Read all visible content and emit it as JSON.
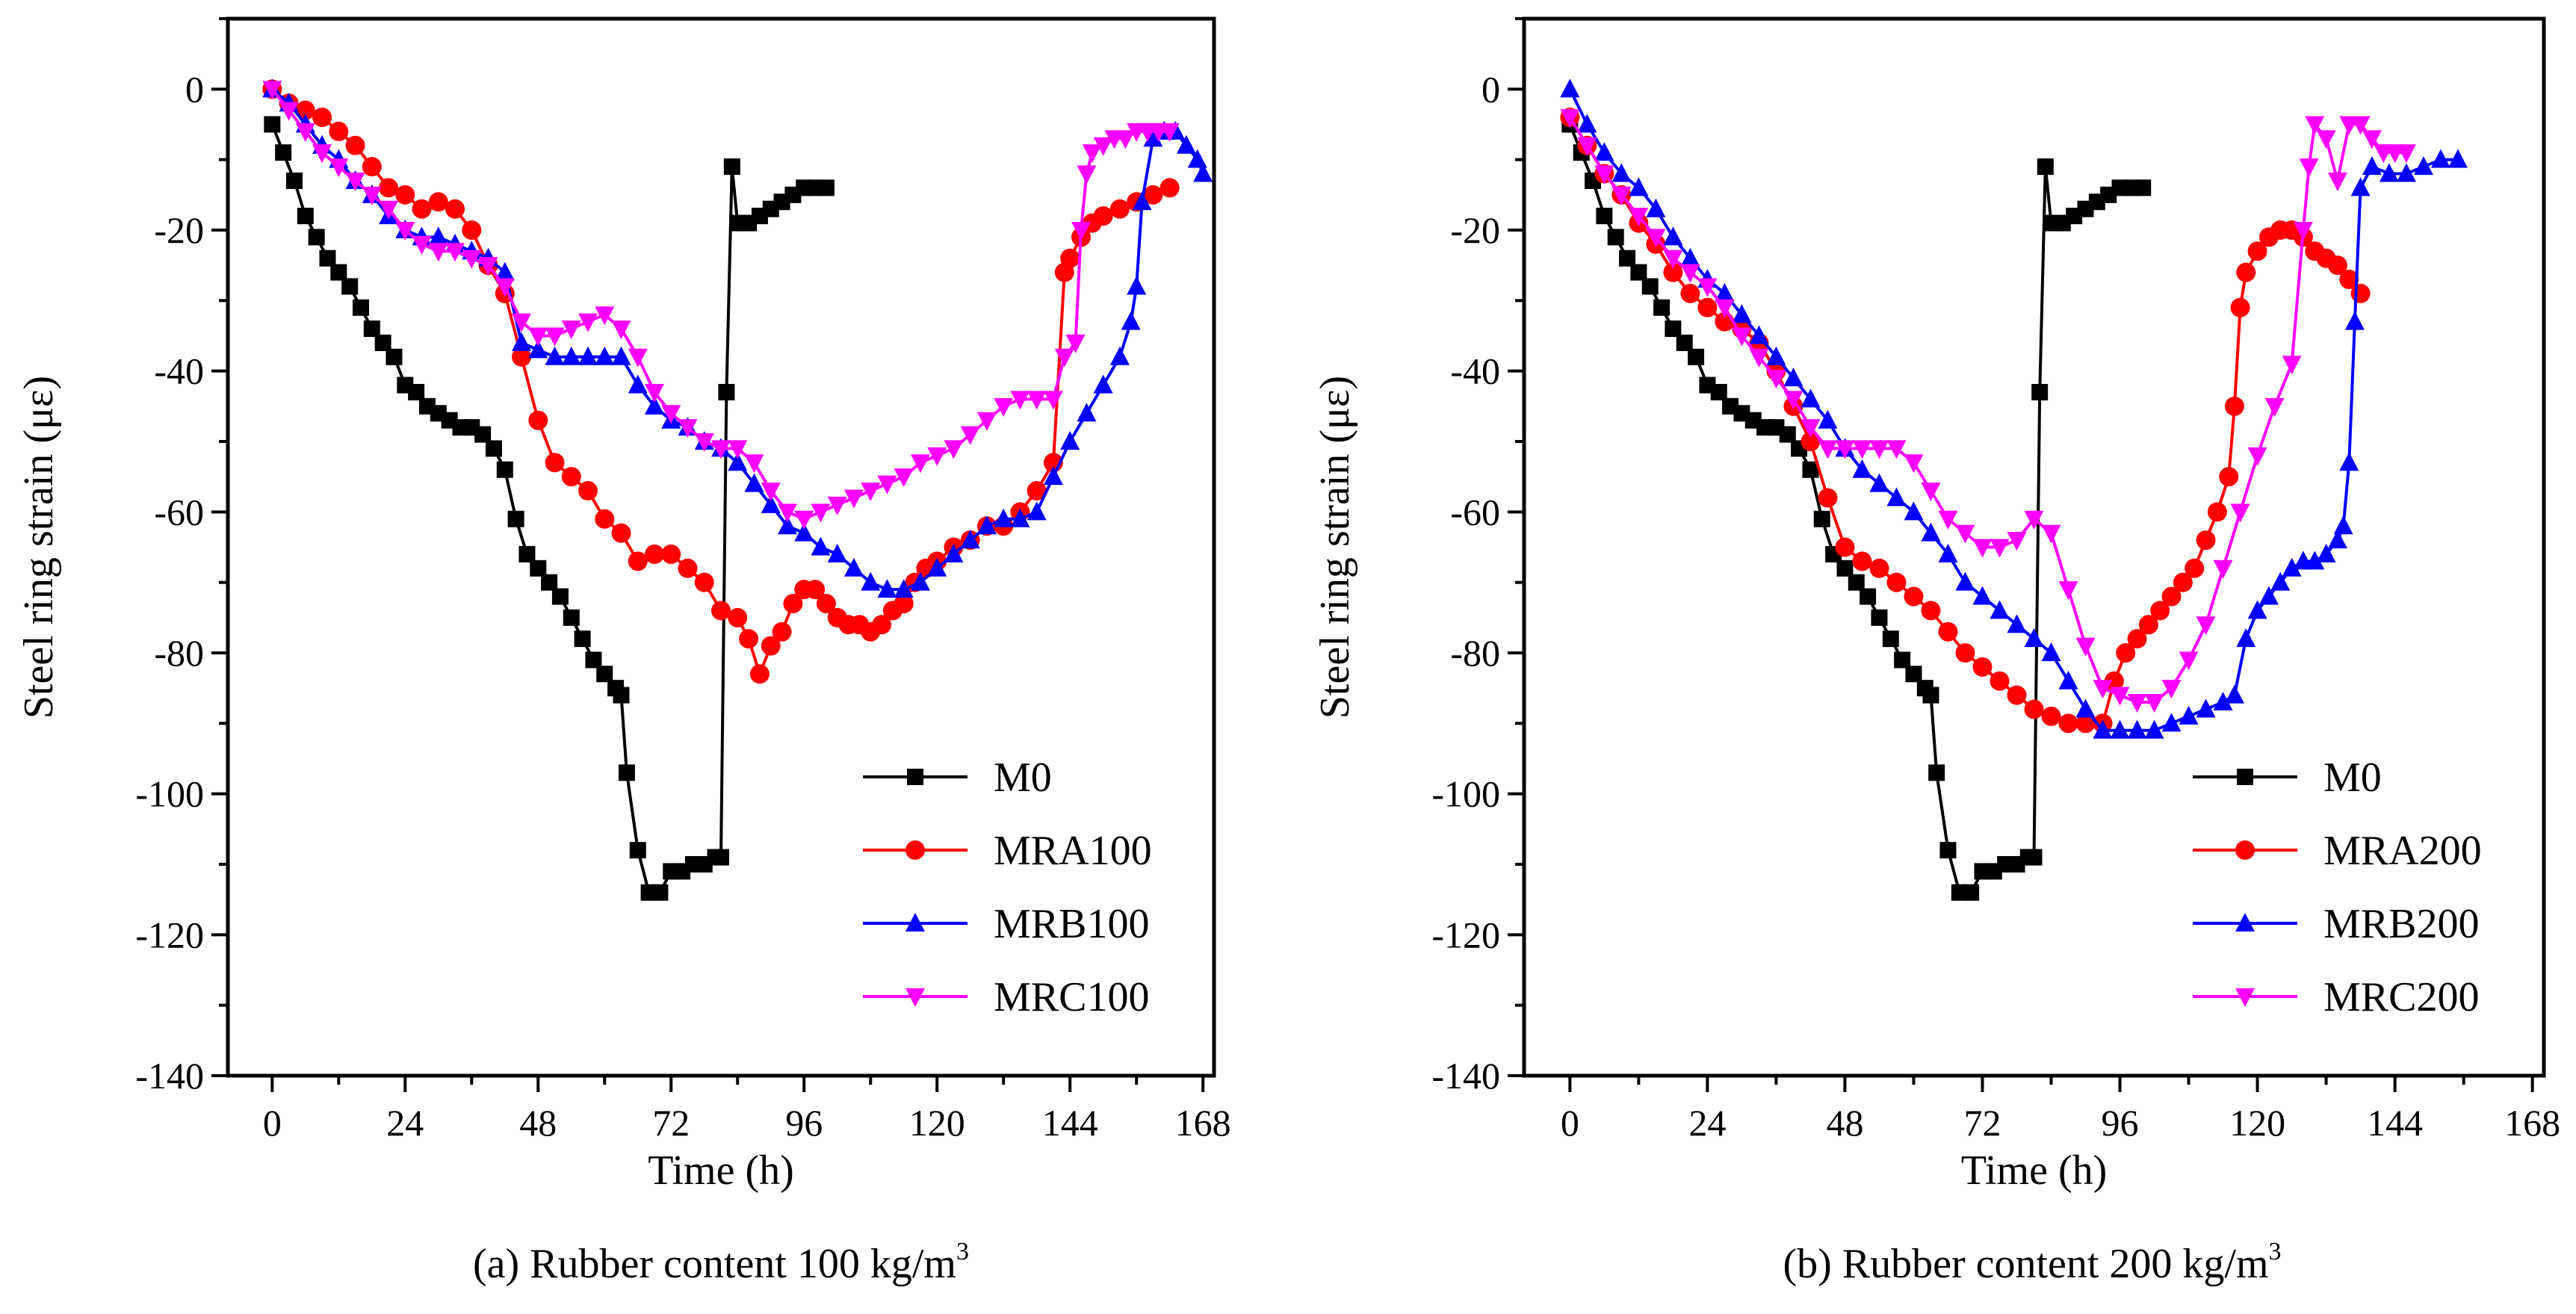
{
  "chart_data": [
    {
      "type": "line",
      "panel": "a",
      "caption_main": "(a) Rubber content 100 kg/m",
      "caption_sup": "3",
      "xlabel": "Time (h)",
      "ylabel": "Steel ring strain (με)",
      "xlim": [
        -8,
        170
      ],
      "ylim": [
        -140,
        10
      ],
      "xticks": [
        0,
        24,
        48,
        72,
        96,
        120,
        144,
        168
      ],
      "yticks": [
        0,
        -20,
        -40,
        -60,
        -80,
        -100,
        -120,
        -140
      ],
      "legend_position": "bottom-right",
      "series": [
        {
          "name": "M0",
          "color": "#000000",
          "marker": "square",
          "x": [
            0,
            2,
            4,
            6,
            8,
            10,
            12,
            14,
            16,
            18,
            20,
            22,
            24,
            26,
            28,
            30,
            32,
            34,
            36,
            38,
            40,
            42,
            44,
            46,
            48,
            50,
            52,
            54,
            56,
            58,
            60,
            62,
            63,
            64,
            66,
            68,
            70,
            72,
            74,
            76,
            78,
            80,
            81,
            82,
            83,
            84,
            86,
            88,
            90,
            92,
            94,
            96,
            98,
            100
          ],
          "y": [
            -5,
            -9,
            -13,
            -18,
            -21,
            -24,
            -26,
            -28,
            -31,
            -34,
            -36,
            -38,
            -42,
            -43,
            -45,
            -46,
            -47,
            -48,
            -48,
            -49,
            -51,
            -54,
            -61,
            -66,
            -68,
            -70,
            -72,
            -75,
            -78,
            -81,
            -83,
            -85,
            -86,
            -97,
            -108,
            -114,
            -114,
            -111,
            -111,
            -110,
            -110,
            -109,
            -109,
            -43,
            -11,
            -19,
            -19,
            -18,
            -17,
            -16,
            -15,
            -14,
            -14,
            -14
          ]
        },
        {
          "name": "MRA100",
          "color": "#ff0000",
          "marker": "circle",
          "x": [
            0,
            3,
            6,
            9,
            12,
            15,
            18,
            21,
            24,
            27,
            30,
            33,
            36,
            39,
            42,
            45,
            48,
            51,
            54,
            57,
            60,
            63,
            66,
            69,
            72,
            75,
            78,
            81,
            84,
            86,
            88,
            90,
            92,
            94,
            96,
            98,
            100,
            102,
            104,
            106,
            108,
            110,
            112,
            114,
            116,
            118,
            120,
            123,
            126,
            129,
            132,
            135,
            138,
            141,
            143,
            144,
            146,
            148,
            150,
            153,
            156,
            159,
            162
          ],
          "y": [
            0,
            -2,
            -3,
            -4,
            -6,
            -8,
            -11,
            -14,
            -15,
            -17,
            -16,
            -17,
            -20,
            -25,
            -29,
            -38,
            -47,
            -53,
            -55,
            -57,
            -61,
            -63,
            -67,
            -66,
            -66,
            -68,
            -70,
            -74,
            -75,
            -78,
            -83,
            -79,
            -77,
            -73,
            -71,
            -71,
            -73,
            -75,
            -76,
            -76,
            -77,
            -76,
            -74,
            -73,
            -70,
            -68,
            -67,
            -65,
            -64,
            -62,
            -62,
            -60,
            -57,
            -53,
            -26,
            -24,
            -21,
            -19,
            -18,
            -17,
            -16,
            -15,
            -14
          ]
        },
        {
          "name": "MRB100",
          "color": "#0000ff",
          "marker": "triangle-up",
          "x": [
            0,
            3,
            6,
            9,
            12,
            15,
            18,
            21,
            24,
            27,
            30,
            33,
            36,
            39,
            42,
            45,
            48,
            51,
            54,
            57,
            60,
            63,
            66,
            69,
            72,
            75,
            78,
            81,
            84,
            87,
            90,
            93,
            96,
            99,
            102,
            105,
            108,
            111,
            114,
            117,
            120,
            123,
            126,
            129,
            132,
            135,
            138,
            141,
            144,
            147,
            150,
            153,
            155,
            156,
            157,
            159,
            161,
            163,
            165,
            167,
            168
          ],
          "y": [
            0,
            -2,
            -5,
            -8,
            -10,
            -13,
            -15,
            -18,
            -20,
            -21,
            -21,
            -22,
            -23,
            -24,
            -26,
            -36,
            -37,
            -38,
            -38,
            -38,
            -38,
            -38,
            -42,
            -45,
            -47,
            -48,
            -50,
            -51,
            -53,
            -56,
            -59,
            -62,
            -63,
            -65,
            -66,
            -68,
            -70,
            -71,
            -71,
            -70,
            -68,
            -66,
            -64,
            -62,
            -61,
            -61,
            -60,
            -55,
            -50,
            -46,
            -42,
            -38,
            -33,
            -28,
            -16,
            -7,
            -6,
            -6,
            -8,
            -10,
            -12
          ]
        },
        {
          "name": "MRC100",
          "color": "#ff00ff",
          "marker": "triangle-down",
          "x": [
            0,
            3,
            6,
            9,
            12,
            15,
            18,
            21,
            24,
            27,
            30,
            33,
            36,
            39,
            42,
            45,
            48,
            51,
            54,
            57,
            60,
            63,
            66,
            69,
            72,
            75,
            78,
            81,
            84,
            87,
            90,
            93,
            96,
            99,
            102,
            105,
            108,
            111,
            114,
            117,
            120,
            123,
            126,
            129,
            132,
            135,
            138,
            141,
            143,
            145,
            146,
            147,
            148,
            150,
            152,
            154,
            156,
            158,
            160,
            162
          ],
          "y": [
            0,
            -3,
            -6,
            -9,
            -11,
            -13,
            -15,
            -17,
            -20,
            -22,
            -23,
            -23,
            -24,
            -25,
            -28,
            -33,
            -35,
            -35,
            -34,
            -33,
            -32,
            -34,
            -38,
            -43,
            -46,
            -48,
            -50,
            -51,
            -51,
            -53,
            -57,
            -60,
            -61,
            -60,
            -59,
            -58,
            -57,
            -56,
            -55,
            -53,
            -52,
            -51,
            -49,
            -47,
            -45,
            -44,
            -44,
            -44,
            -38,
            -36,
            -20,
            -12,
            -9,
            -8,
            -7,
            -7,
            -6,
            -6,
            -6,
            -6
          ]
        }
      ]
    },
    {
      "type": "line",
      "panel": "b",
      "caption_main": "(b) Rubber content 200 kg/m",
      "caption_sup": "3",
      "xlabel": "Time (h)",
      "ylabel": "Steel ring strain (με)",
      "xlim": [
        -8,
        170
      ],
      "ylim": [
        -140,
        10
      ],
      "xticks": [
        0,
        24,
        48,
        72,
        96,
        120,
        144,
        168
      ],
      "yticks": [
        0,
        -20,
        -40,
        -60,
        -80,
        -100,
        -120,
        -140
      ],
      "legend_position": "bottom-right",
      "series": [
        {
          "name": "M0",
          "color": "#000000",
          "marker": "square",
          "x": [
            0,
            2,
            4,
            6,
            8,
            10,
            12,
            14,
            16,
            18,
            20,
            22,
            24,
            26,
            28,
            30,
            32,
            34,
            36,
            38,
            40,
            42,
            44,
            46,
            48,
            50,
            52,
            54,
            56,
            58,
            60,
            62,
            63,
            64,
            66,
            68,
            70,
            72,
            74,
            76,
            78,
            80,
            81,
            82,
            83,
            84,
            86,
            88,
            90,
            92,
            94,
            96,
            98,
            100
          ],
          "y": [
            -5,
            -9,
            -13,
            -18,
            -21,
            -24,
            -26,
            -28,
            -31,
            -34,
            -36,
            -38,
            -42,
            -43,
            -45,
            -46,
            -47,
            -48,
            -48,
            -49,
            -51,
            -54,
            -61,
            -66,
            -68,
            -70,
            -72,
            -75,
            -78,
            -81,
            -83,
            -85,
            -86,
            -97,
            -108,
            -114,
            -114,
            -111,
            -111,
            -110,
            -110,
            -109,
            -109,
            -43,
            -11,
            -19,
            -19,
            -18,
            -17,
            -16,
            -15,
            -14,
            -14,
            -14
          ]
        },
        {
          "name": "MRA200",
          "color": "#ff0000",
          "marker": "circle",
          "x": [
            0,
            3,
            6,
            9,
            12,
            15,
            18,
            21,
            24,
            27,
            30,
            33,
            36,
            39,
            42,
            45,
            48,
            51,
            54,
            57,
            60,
            63,
            66,
            69,
            72,
            75,
            78,
            81,
            84,
            87,
            90,
            93,
            95,
            97,
            99,
            101,
            103,
            105,
            107,
            109,
            111,
            113,
            115,
            116,
            117,
            118,
            120,
            122,
            124,
            126,
            128,
            130,
            132,
            134,
            136,
            138
          ],
          "y": [
            -4,
            -8,
            -12,
            -15,
            -19,
            -22,
            -26,
            -29,
            -31,
            -33,
            -34,
            -36,
            -40,
            -45,
            -50,
            -58,
            -65,
            -67,
            -68,
            -70,
            -72,
            -74,
            -77,
            -80,
            -82,
            -84,
            -86,
            -88,
            -89,
            -90,
            -90,
            -90,
            -84,
            -80,
            -78,
            -76,
            -74,
            -72,
            -70,
            -68,
            -64,
            -60,
            -55,
            -45,
            -31,
            -26,
            -23,
            -21,
            -20,
            -20,
            -21,
            -23,
            -24,
            -25,
            -27,
            -29
          ]
        },
        {
          "name": "MRB200",
          "color": "#0000ff",
          "marker": "triangle-up",
          "x": [
            0,
            3,
            6,
            9,
            12,
            15,
            18,
            21,
            24,
            27,
            30,
            33,
            36,
            39,
            42,
            45,
            48,
            51,
            54,
            57,
            60,
            63,
            66,
            69,
            72,
            75,
            78,
            81,
            84,
            87,
            90,
            93,
            96,
            99,
            102,
            105,
            108,
            111,
            114,
            116,
            118,
            120,
            122,
            124,
            126,
            128,
            130,
            132,
            134,
            135,
            136,
            137,
            138,
            140,
            143,
            146,
            149,
            152,
            155
          ],
          "y": [
            0,
            -5,
            -9,
            -12,
            -14,
            -17,
            -21,
            -24,
            -27,
            -29,
            -32,
            -35,
            -38,
            -41,
            -44,
            -47,
            -51,
            -54,
            -56,
            -58,
            -60,
            -63,
            -66,
            -70,
            -72,
            -74,
            -76,
            -78,
            -80,
            -84,
            -88,
            -91,
            -91,
            -91,
            -91,
            -90,
            -89,
            -88,
            -87,
            -86,
            -78,
            -74,
            -72,
            -70,
            -68,
            -67,
            -67,
            -66,
            -64,
            -62,
            -53,
            -33,
            -14,
            -11,
            -12,
            -12,
            -11,
            -10,
            -10
          ]
        },
        {
          "name": "MRC200",
          "color": "#ff00ff",
          "marker": "triangle-down",
          "x": [
            0,
            3,
            6,
            9,
            12,
            15,
            18,
            21,
            24,
            27,
            30,
            33,
            36,
            39,
            42,
            45,
            48,
            51,
            54,
            57,
            60,
            63,
            66,
            69,
            72,
            75,
            78,
            81,
            84,
            87,
            90,
            93,
            96,
            99,
            102,
            105,
            108,
            111,
            114,
            117,
            120,
            123,
            126,
            128,
            129,
            130,
            132,
            134,
            136,
            138,
            140,
            142,
            144,
            146
          ],
          "y": [
            -4,
            -8,
            -12,
            -15,
            -18,
            -21,
            -24,
            -26,
            -28,
            -31,
            -35,
            -38,
            -41,
            -44,
            -48,
            -51,
            -51,
            -51,
            -51,
            -51,
            -53,
            -57,
            -61,
            -63,
            -65,
            -65,
            -64,
            -61,
            -63,
            -71,
            -79,
            -85,
            -86,
            -87,
            -87,
            -85,
            -81,
            -76,
            -68,
            -60,
            -52,
            -45,
            -39,
            -20,
            -11,
            -5,
            -7,
            -13,
            -5,
            -5,
            -7,
            -9,
            -9,
            -9
          ]
        }
      ]
    }
  ]
}
